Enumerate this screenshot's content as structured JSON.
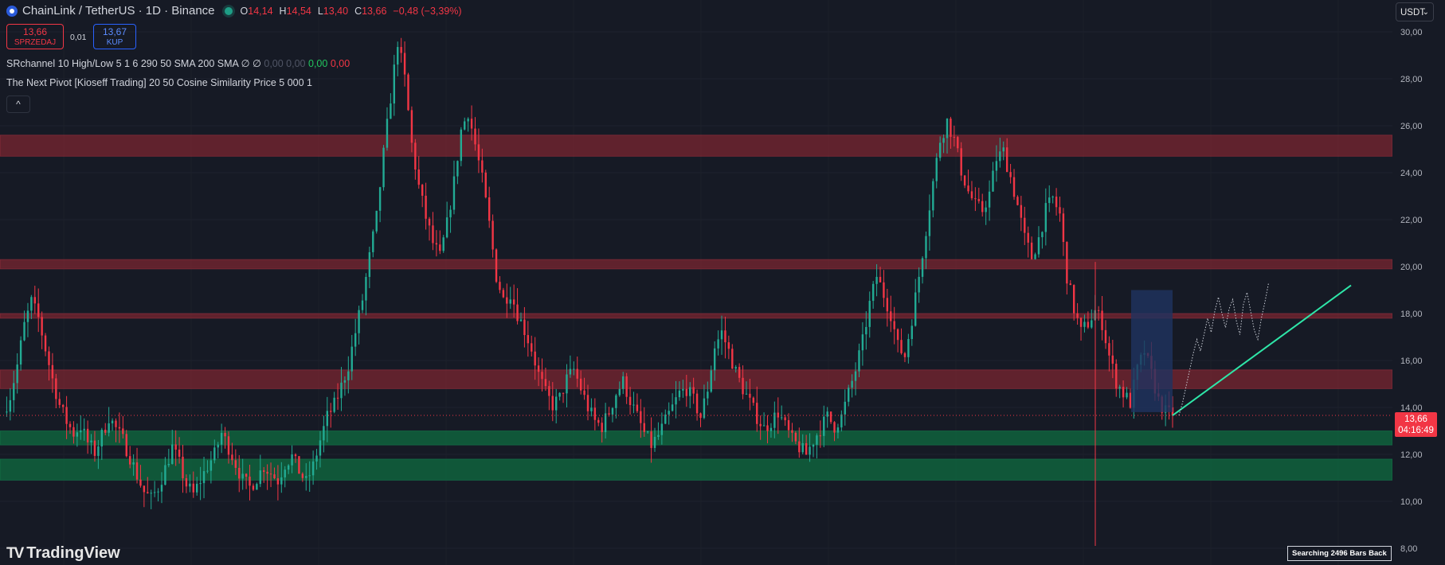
{
  "header": {
    "title": "ChainLink / TetherUS · 1D · Binance",
    "ohlc": [
      {
        "key": "O",
        "value": "14,14"
      },
      {
        "key": "H",
        "value": "14,54"
      },
      {
        "key": "L",
        "value": "13,40"
      },
      {
        "key": "C",
        "value": "13,66"
      }
    ],
    "change": "−0,48 (−3,39%)"
  },
  "trade": {
    "sell_price": "13,66",
    "sell_label": "SPRZEDAJ",
    "spread": "0,01",
    "buy_price": "13,67",
    "buy_label": "KUP"
  },
  "indicators": {
    "sr_channel": "SRchannel 10 High/Low 5 1 6 290 50 SMA 200 SMA  ∅  ∅",
    "sr_values_dim": "0,00 0,00",
    "sr_value_green": "0,00",
    "sr_value_red": "0,00",
    "next_pivot": "The Next Pivot [Kioseff Trading] 20 50 Cosine Similarity Price 5 000 1",
    "collapse_icon": "^"
  },
  "currency_button": {
    "label": "USDT",
    "chevron": "⌄"
  },
  "price_label": {
    "price": "13,66",
    "countdown": "04:16:49"
  },
  "status_text": "Searching 2496 Bars Back",
  "logo": {
    "mark": "TV",
    "text": "TradingView"
  },
  "colors": {
    "background": "#161a25",
    "up": "#22ab94",
    "down": "#f23645",
    "resistance_zone": "#7a2530",
    "support_zone": "#0f5e3c",
    "projection": "#2ee6a8",
    "highlight_box": "#1f3360"
  },
  "chart_data": {
    "type": "candlestick",
    "symbol": "LINK/USDT",
    "timeframe": "1D",
    "ylim": [
      8,
      30.5
    ],
    "y_ticks": [
      "30,00",
      "28,00",
      "26,00",
      "24,00",
      "22,00",
      "20,00",
      "18,00",
      "16,00",
      "14,00",
      "12,00",
      "10,00",
      "8,00"
    ],
    "current_price": 13.66,
    "resistance_zones": [
      [
        24.7,
        25.6
      ],
      [
        19.9,
        20.3
      ],
      [
        17.8,
        18.0
      ],
      [
        14.8,
        15.6
      ]
    ],
    "support_zones": [
      [
        12.4,
        13.0
      ],
      [
        10.9,
        11.8
      ]
    ],
    "close_path": [
      13.8,
      14.5,
      15.8,
      17.5,
      18.5,
      17.8,
      16.5,
      15.2,
      14.1,
      13.4,
      12.9,
      13.2,
      12.5,
      12.1,
      12.8,
      13.6,
      13.1,
      12.6,
      11.9,
      11.1,
      10.4,
      10.1,
      10.6,
      11.4,
      12.3,
      11.6,
      10.7,
      10.3,
      10.9,
      11.5,
      12.0,
      12.9,
      12.3,
      11.6,
      10.9,
      10.6,
      11.0,
      11.5,
      11.2,
      10.9,
      11.6,
      11.9,
      11.3,
      10.8,
      11.5,
      12.6,
      13.6,
      14.1,
      14.9,
      15.8,
      17.2,
      18.6,
      20.4,
      22.1,
      24.8,
      27.2,
      29.6,
      28.0,
      25.2,
      23.4,
      22.1,
      21.0,
      20.4,
      21.8,
      23.6,
      25.8,
      26.6,
      25.2,
      23.7,
      21.8,
      19.6,
      18.6,
      18.9,
      18.0,
      17.3,
      16.5,
      15.4,
      14.6,
      14.1,
      14.4,
      15.2,
      15.6,
      14.8,
      14.0,
      13.4,
      13.2,
      13.8,
      14.6,
      15.1,
      14.3,
      13.6,
      12.9,
      12.4,
      12.8,
      13.4,
      14.0,
      14.6,
      14.8,
      14.3,
      13.6,
      14.8,
      16.6,
      17.2,
      16.4,
      15.5,
      14.8,
      14.2,
      13.6,
      13.1,
      13.4,
      13.8,
      13.2,
      12.6,
      12.3,
      12.0,
      12.6,
      13.1,
      13.6,
      13.2,
      13.6,
      14.6,
      15.6,
      16.8,
      18.4,
      19.6,
      18.8,
      18.0,
      16.6,
      16.2,
      17.8,
      19.6,
      21.6,
      23.6,
      25.4,
      26.2,
      25.4,
      24.1,
      23.2,
      22.6,
      22.4,
      23.1,
      24.6,
      24.9,
      23.8,
      22.6,
      21.2,
      20.4,
      21.2,
      22.4,
      22.9,
      22.2,
      19.6,
      18.2,
      17.2,
      17.6,
      18.1,
      17.6,
      16.2,
      15.1,
      14.6,
      14.2,
      15.6,
      16.4,
      15.4,
      14.3,
      13.8,
      13.66
    ],
    "projection_line": {
      "from": {
        "bar_offset": 0,
        "y": 13.66
      },
      "to": {
        "bar_offset": 28,
        "y": 19.2
      }
    },
    "projection_path": [
      13.66,
      14.2,
      14.9,
      15.6,
      16.3,
      16.9,
      16.4,
      17.1,
      17.8,
      17.2,
      18.1,
      18.7,
      18.0,
      17.4,
      18.2,
      18.6,
      17.7,
      17.1,
      18.4,
      18.9,
      18.1,
      17.3,
      16.9,
      17.8,
      18.5,
      19.3
    ]
  }
}
